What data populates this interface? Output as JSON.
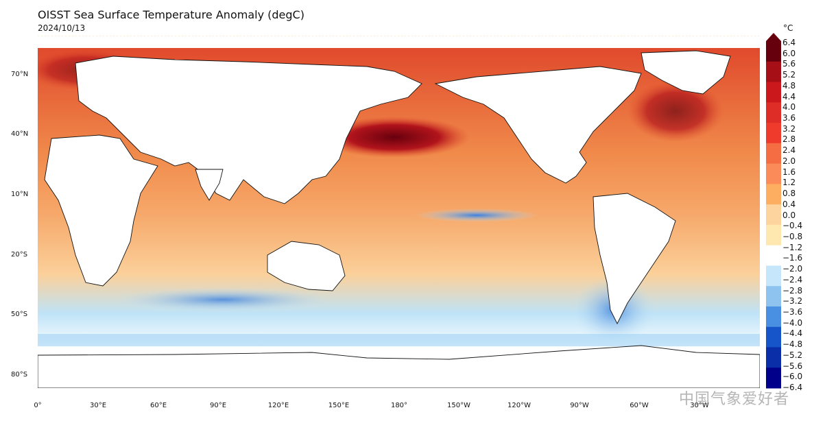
{
  "header": {
    "title": "OISST Sea Surface Temperature Anomaly (degC)",
    "date": "2024/10/13"
  },
  "map": {
    "lat_labels": [
      "70°N",
      "40°N",
      "10°N",
      "20°S",
      "50°S",
      "80°S"
    ],
    "lon_labels": [
      "0°",
      "30°E",
      "60°E",
      "90°E",
      "120°E",
      "150°E",
      "180°",
      "150°W",
      "120°W",
      "90°W",
      "60°W",
      "30°W"
    ]
  },
  "colorbar": {
    "unit": "°C",
    "ticks": [
      "6.4",
      "6.0",
      "5.6",
      "5.2",
      "4.8",
      "4.4",
      "4.0",
      "3.6",
      "3.2",
      "2.8",
      "2.4",
      "2.0",
      "1.6",
      "1.2",
      "0.8",
      "0.4",
      "0.0",
      "−0.4",
      "−0.8",
      "−1.2",
      "−1.6",
      "−2.0",
      "−2.4",
      "−2.8",
      "−3.2",
      "−3.6",
      "−4.0",
      "−4.4",
      "−4.8",
      "−5.2",
      "−5.6",
      "−6.0",
      "−6.4"
    ],
    "colors": [
      "#67000d",
      "#a50f15",
      "#cb181d",
      "#de2d26",
      "#ef3b2c",
      "#f46d43",
      "#fb8c5a",
      "#fdae61",
      "#fdd49e",
      "#fee8b0",
      "#ffffff",
      "#c6e6fb",
      "#8ec3f0",
      "#4a90e2",
      "#1555c9",
      "#0a2ea8",
      "#00008b"
    ]
  },
  "watermark": "中国气象爱好者"
}
